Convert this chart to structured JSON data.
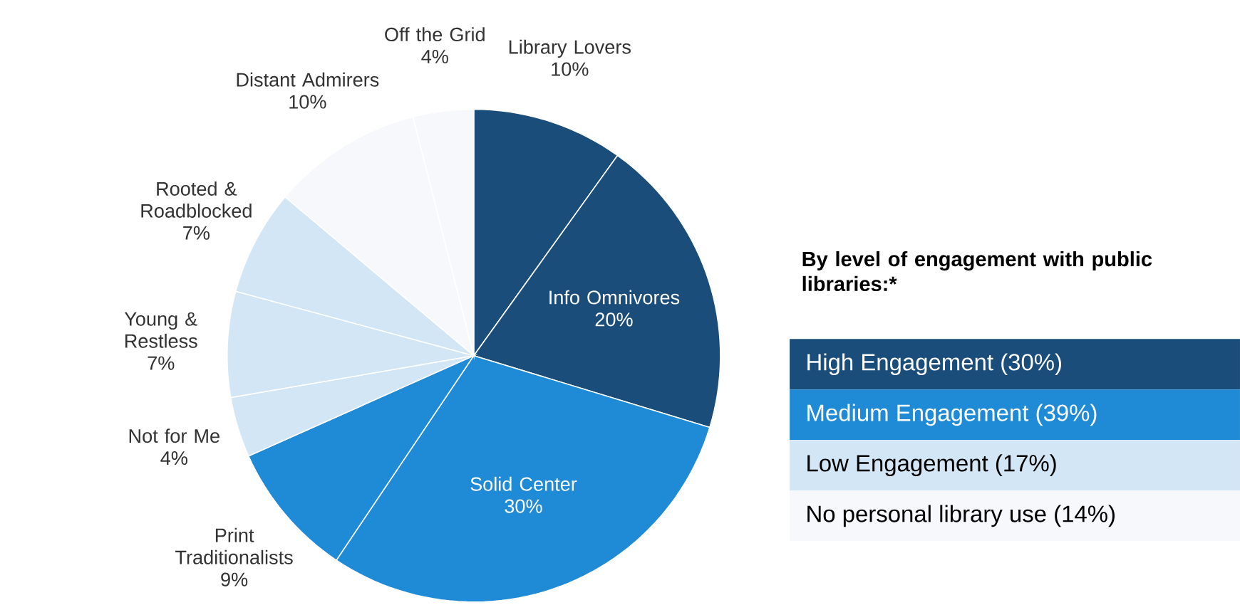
{
  "chart_data": {
    "type": "pie",
    "categories": [
      "Library Lovers",
      "Info Omnivores",
      "Solid Center",
      "Print Traditionalists",
      "Not for Me",
      "Young & Restless",
      "Rooted & Roadblocked",
      "Distant Admirers",
      "Off the Grid"
    ],
    "values": [
      10,
      20,
      30,
      9,
      4,
      7,
      7,
      10,
      4
    ],
    "value_labels": [
      "10%",
      "20%",
      "30%",
      "9%",
      "4%",
      "7%",
      "7%",
      "10%",
      "4%"
    ],
    "colors": [
      "#1b4d7a",
      "#1b4d7a",
      "#1f8ad6",
      "#1f8ad6",
      "#d3e6f6",
      "#d3e6f6",
      "#d3e6f6",
      "#f6f8fb",
      "#f6f8fb"
    ],
    "legend_title": "By level of engagement with public libraries:*",
    "annotations": [
      "High Engagement (30%)",
      "Medium Engagement (39%)",
      "Low Engagement (17%)",
      "No personal library use (14%)"
    ]
  }
}
